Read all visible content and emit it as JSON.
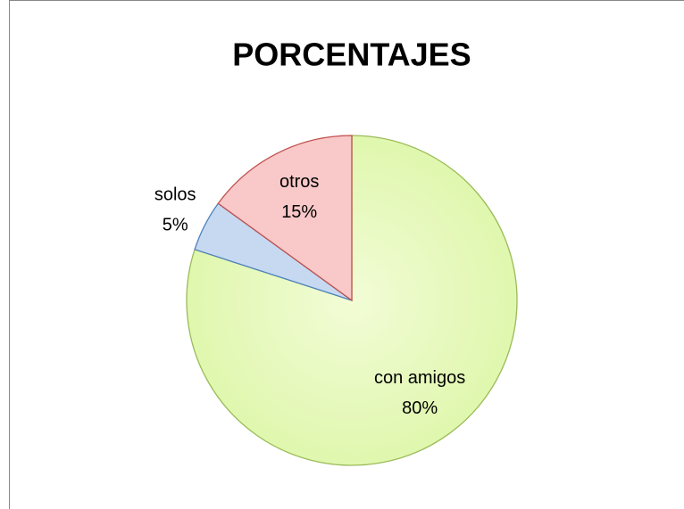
{
  "chart_data": {
    "type": "pie",
    "title": "PORCENTAJES",
    "categories": [
      "con amigos",
      "solos",
      "otros"
    ],
    "values": [
      80,
      5,
      15
    ],
    "value_labels": [
      "80%",
      "5%",
      "15%"
    ],
    "colors": [
      "#e4f7b4",
      "#c6d9f1",
      "#f9c8c8"
    ],
    "stroke_colors": [
      "#9bbb59",
      "#4f81bd",
      "#c0504d"
    ]
  }
}
